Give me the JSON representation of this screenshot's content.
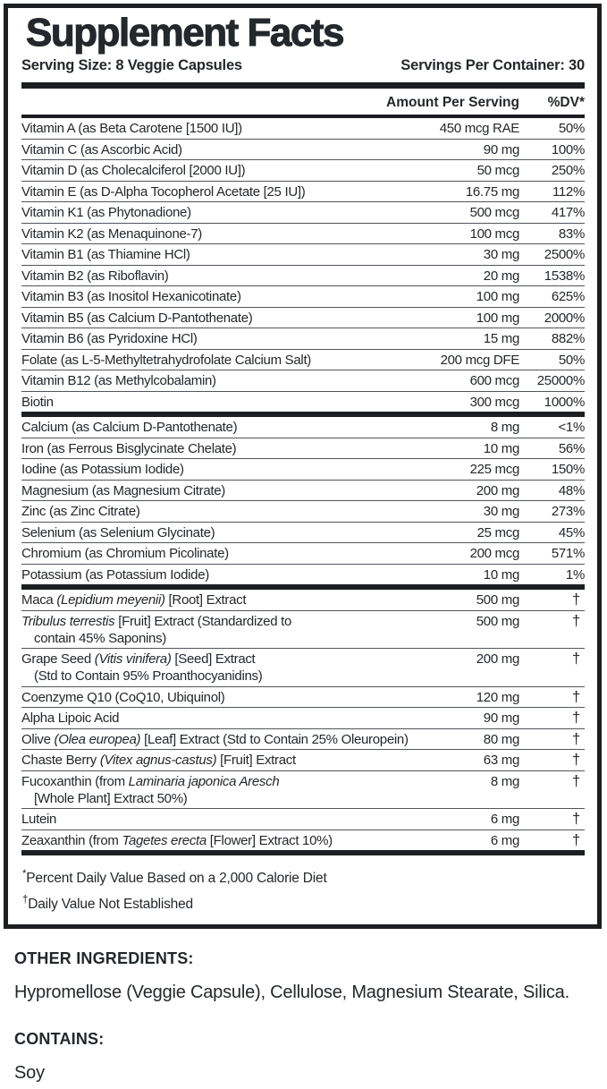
{
  "label": {
    "title": "Supplement Facts",
    "serving_size": "Serving Size: 8 Veggie Capsules",
    "servings_per_container": "Servings Per Container: 30",
    "columns": {
      "amount": "Amount Per Serving",
      "dv": "%DV*"
    },
    "rows": [
      {
        "name": [
          "Vitamin A (as Beta Carotene [1500 IU])"
        ],
        "amount": "450 mcg RAE",
        "dv": "50%"
      },
      {
        "name": [
          "Vitamin C (as Ascorbic Acid)"
        ],
        "amount": "90 mg",
        "dv": "100%"
      },
      {
        "name": [
          "Vitamin D (as Cholecalciferol [2000 IU])"
        ],
        "amount": "50 mcg",
        "dv": "250%"
      },
      {
        "name": [
          "Vitamin E (as D-Alpha Tocopherol Acetate [25 IU])"
        ],
        "amount": "16.75 mg",
        "dv": "112%"
      },
      {
        "name": [
          "Vitamin K1 (as Phytonadione)"
        ],
        "amount": "500 mcg",
        "dv": "417%"
      },
      {
        "name": [
          "Vitamin K2 (as Menaquinone-7)"
        ],
        "amount": "100 mcg",
        "dv": "83%"
      },
      {
        "name": [
          "Vitamin B1 (as Thiamine HCl)"
        ],
        "amount": "30 mg",
        "dv": "2500%"
      },
      {
        "name": [
          "Vitamin B2 (as Riboflavin)"
        ],
        "amount": "20 mg",
        "dv": "1538%"
      },
      {
        "name": [
          "Vitamin B3 (as Inositol Hexanicotinate)"
        ],
        "amount": "100 mg",
        "dv": "625%"
      },
      {
        "name": [
          "Vitamin B5 (as Calcium D-Pantothenate)"
        ],
        "amount": "100 mg",
        "dv": "2000%"
      },
      {
        "name": [
          "Vitamin B6 (as Pyridoxine HCl)"
        ],
        "amount": "15 mg",
        "dv": "882%"
      },
      {
        "name": [
          "Folate (as L-5-Methyltetrahydrofolate Calcium Salt)"
        ],
        "amount": "200 mcg DFE",
        "dv": "50%"
      },
      {
        "name": [
          "Vitamin B12 (as Methylcobalamin)"
        ],
        "amount": "600 mcg",
        "dv": "25000%"
      },
      {
        "name": [
          "Biotin"
        ],
        "amount": "300 mcg",
        "dv": "1000%",
        "bar": true
      },
      {
        "name": [
          "Calcium (as Calcium D-Pantothenate)"
        ],
        "amount": "8 mg",
        "dv": "<1%"
      },
      {
        "name": [
          "Iron (as Ferrous Bisglycinate Chelate)"
        ],
        "amount": "10 mg",
        "dv": "56%"
      },
      {
        "name": [
          "Iodine (as Potassium Iodide)"
        ],
        "amount": "225 mcg",
        "dv": "150%"
      },
      {
        "name": [
          "Magnesium (as Magnesium Citrate)"
        ],
        "amount": "200 mg",
        "dv": "48%"
      },
      {
        "name": [
          "Zinc (as Zinc Citrate)"
        ],
        "amount": "30 mg",
        "dv": "273%"
      },
      {
        "name": [
          "Selenium (as Selenium Glycinate)"
        ],
        "amount": "25 mcg",
        "dv": "45%"
      },
      {
        "name": [
          "Chromium (as Chromium Picolinate)"
        ],
        "amount": "200 mcg",
        "dv": "571%"
      },
      {
        "name": [
          "Potassium (as Potassium Iodide)"
        ],
        "amount": "10 mg",
        "dv": "1%",
        "bar": true
      },
      {
        "name": [
          "Maca *(Lepidium meyenii)* [Root] Extract"
        ],
        "amount": "500 mg",
        "dv": "†"
      },
      {
        "name": [
          "*Tribulus terrestis* [Fruit] Extract (Standardized to",
          "contain 45% Saponins)"
        ],
        "amount": "500 mg",
        "dv": "†"
      },
      {
        "name": [
          "Grape Seed *(Vitis vinifera)* [Seed] Extract",
          "(Std to Contain 95% Proanthocyanidins)"
        ],
        "amount": "200 mg",
        "dv": "†"
      },
      {
        "name": [
          "Coenzyme Q10 (CoQ10, Ubiquinol)"
        ],
        "amount": "120 mg",
        "dv": "†"
      },
      {
        "name": [
          "Alpha Lipoic Acid"
        ],
        "amount": "90 mg",
        "dv": "†"
      },
      {
        "name": [
          "Olive *(Olea europea)* [Leaf] Extract (Std to Contain 25% Oleuropein)"
        ],
        "amount": "80 mg",
        "dv": "†"
      },
      {
        "name": [
          "Chaste Berry *(Vitex agnus-castus)* [Fruit] Extract"
        ],
        "amount": "63 mg",
        "dv": "†"
      },
      {
        "name": [
          "Fucoxanthin (from *Laminaria japonica Aresch*",
          "[Whole Plant] Extract 50%)"
        ],
        "amount": "8 mg",
        "dv": "†"
      },
      {
        "name": [
          "Lutein"
        ],
        "amount": "6 mg",
        "dv": "†"
      },
      {
        "name": [
          "Zeaxanthin (from *Tagetes erecta* [Flower] Extract 10%)"
        ],
        "amount": "6 mg",
        "dv": "†",
        "bar": true
      }
    ],
    "footnotes": [
      {
        "mark": "*",
        "text": "Percent Daily Value Based on a 2,000 Calorie Diet"
      },
      {
        "mark": "†",
        "text": "Daily Value Not Established"
      }
    ]
  },
  "other_ingredients": {
    "heading": "OTHER INGREDIENTS:",
    "text": "Hypromellose (Veggie Capsule), Cellulose, Magnesium Stearate, Silica."
  },
  "contains": {
    "heading": "CONTAINS:",
    "text": "Soy"
  },
  "colors": {
    "ink": "#24272b",
    "divider": "#51565b",
    "bar": "#1c1e21"
  }
}
